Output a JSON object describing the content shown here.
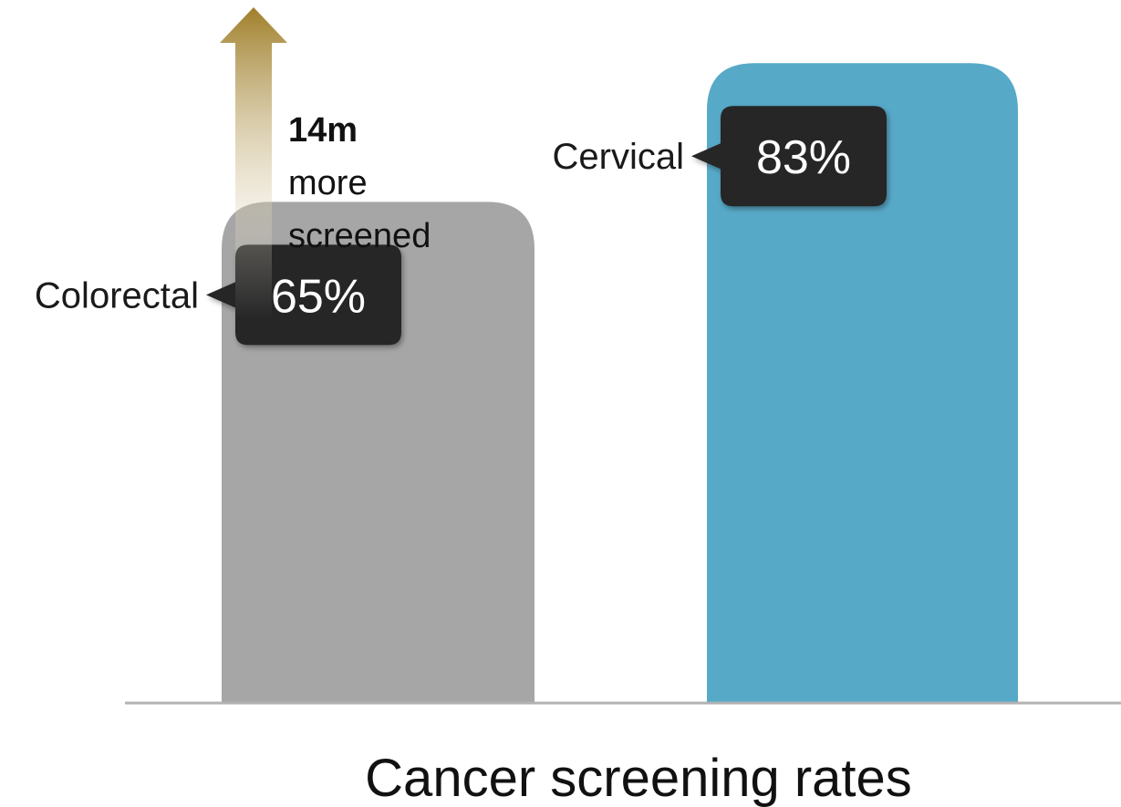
{
  "chart_data": {
    "type": "bar",
    "categories": [
      "Colorectal",
      "Cervical"
    ],
    "values": [
      65,
      83
    ],
    "value_labels": [
      "65%",
      "83%"
    ],
    "xlabel": "Cancer screening rates",
    "ylim": [
      0,
      90
    ],
    "grid": false,
    "colors": [
      "#a6a6a6",
      "#57a9c8"
    ],
    "annotation": {
      "bold": "14m",
      "line1": "more",
      "line2": "screened",
      "arrow_color": "#a07f2a"
    }
  }
}
